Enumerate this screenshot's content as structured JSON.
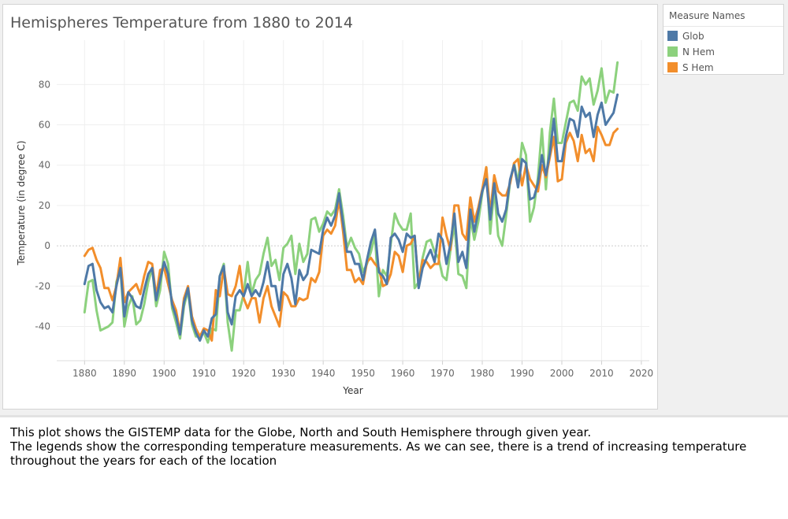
{
  "description": {
    "line1": "This plot shows the GISTEMP data for the Globe, North and South Hemisphere through given year.",
    "line2": "The legends show the corresponding temperature measurements. As we can see, there is a trend of increasing temperature throughout the years for each of the location"
  },
  "legend": {
    "title": "Measure Names",
    "items": [
      {
        "label": "Glob",
        "color": "#4e79a7"
      },
      {
        "label": "N Hem",
        "color": "#8cd17d"
      },
      {
        "label": "S Hem",
        "color": "#f28e2b"
      }
    ]
  },
  "chart_data": {
    "type": "line",
    "title": "Hemispheres Temperature from 1880 to 2014",
    "xlabel": "Year",
    "ylabel": "Temperature (in degree C)",
    "xlim": [
      1873,
      2022
    ],
    "ylim": [
      -57,
      102
    ],
    "x_ticks": [
      1880,
      1890,
      1900,
      1910,
      1920,
      1930,
      1940,
      1950,
      1960,
      1970,
      1980,
      1990,
      2000,
      2010,
      2020
    ],
    "y_ticks": [
      -40,
      -20,
      0,
      20,
      40,
      60,
      80
    ],
    "grid": true,
    "legend_position": "right",
    "x": [
      1880,
      1881,
      1882,
      1883,
      1884,
      1885,
      1886,
      1887,
      1888,
      1889,
      1890,
      1891,
      1892,
      1893,
      1894,
      1895,
      1896,
      1897,
      1898,
      1899,
      1900,
      1901,
      1902,
      1903,
      1904,
      1905,
      1906,
      1907,
      1908,
      1909,
      1910,
      1911,
      1912,
      1913,
      1914,
      1915,
      1916,
      1917,
      1918,
      1919,
      1920,
      1921,
      1922,
      1923,
      1924,
      1925,
      1926,
      1927,
      1928,
      1929,
      1930,
      1931,
      1932,
      1933,
      1934,
      1935,
      1936,
      1937,
      1938,
      1939,
      1940,
      1941,
      1942,
      1943,
      1944,
      1945,
      1946,
      1947,
      1948,
      1949,
      1950,
      1951,
      1952,
      1953,
      1954,
      1955,
      1956,
      1957,
      1958,
      1959,
      1960,
      1961,
      1962,
      1963,
      1964,
      1965,
      1966,
      1967,
      1968,
      1969,
      1970,
      1971,
      1972,
      1973,
      1974,
      1975,
      1976,
      1977,
      1978,
      1979,
      1980,
      1981,
      1982,
      1983,
      1984,
      1985,
      1986,
      1987,
      1988,
      1989,
      1990,
      1991,
      1992,
      1993,
      1994,
      1995,
      1996,
      1997,
      1998,
      1999,
      2000,
      2001,
      2002,
      2003,
      2004,
      2005,
      2006,
      2007,
      2008,
      2009,
      2010,
      2011,
      2012,
      2013,
      2014
    ],
    "series": [
      {
        "name": "Glob",
        "color": "#4e79a7",
        "values": [
          -19,
          -10,
          -9,
          -22,
          -28,
          -31,
          -30,
          -33,
          -20,
          -11,
          -35,
          -23,
          -26,
          -30,
          -31,
          -22,
          -14,
          -11,
          -27,
          -17,
          -8,
          -14,
          -29,
          -35,
          -44,
          -28,
          -21,
          -37,
          -43,
          -47,
          -42,
          -45,
          -36,
          -34,
          -15,
          -10,
          -33,
          -39,
          -25,
          -22,
          -25,
          -19,
          -25,
          -22,
          -25,
          -18,
          -8,
          -20,
          -20,
          -32,
          -14,
          -9,
          -16,
          -29,
          -12,
          -17,
          -14,
          -2,
          -3,
          -4,
          8,
          14,
          10,
          15,
          26,
          11,
          -3,
          -3,
          -9,
          -9,
          -17,
          -7,
          2,
          8,
          -13,
          -15,
          -19,
          4,
          6,
          3,
          -3,
          6,
          4,
          5,
          -21,
          -11,
          -6,
          -2,
          -8,
          6,
          3,
          -9,
          1,
          16,
          -8,
          -3,
          -11,
          18,
          7,
          17,
          27,
          33,
          13,
          31,
          16,
          12,
          18,
          33,
          40,
          29,
          43,
          41,
          23,
          24,
          31,
          45,
          35,
          46,
          63,
          42,
          42,
          54,
          63,
          62,
          54,
          69,
          64,
          66,
          54,
          65,
          71,
          60,
          63,
          66,
          75
        ]
      },
      {
        "name": "N Hem",
        "color": "#8cd17d",
        "values": [
          -33,
          -18,
          -17,
          -32,
          -42,
          -41,
          -40,
          -38,
          -18,
          -11,
          -40,
          -30,
          -25,
          -39,
          -37,
          -29,
          -18,
          -11,
          -30,
          -22,
          -3,
          -9,
          -31,
          -38,
          -46,
          -30,
          -22,
          -39,
          -45,
          -45,
          -43,
          -48,
          -41,
          -42,
          -15,
          -9,
          -38,
          -52,
          -32,
          -32,
          -24,
          -8,
          -24,
          -17,
          -14,
          -4,
          4,
          -10,
          -7,
          -17,
          -1,
          1,
          5,
          -14,
          1,
          -8,
          -4,
          13,
          14,
          7,
          11,
          17,
          15,
          18,
          28,
          15,
          -1,
          4,
          -1,
          -4,
          -13,
          -9,
          -3,
          5,
          -25,
          -12,
          -15,
          1,
          16,
          11,
          8,
          8,
          16,
          -21,
          -18,
          -6,
          2,
          3,
          -3,
          -6,
          -15,
          -17,
          -2,
          11,
          -14,
          -15,
          -21,
          14,
          3,
          12,
          26,
          39,
          6,
          28,
          5,
          0,
          15,
          32,
          41,
          31,
          51,
          45,
          12,
          19,
          34,
          58,
          28,
          56,
          73,
          51,
          51,
          61,
          71,
          72,
          67,
          84,
          80,
          83,
          70,
          77,
          88,
          71,
          77,
          76,
          91
        ]
      },
      {
        "name": "S Hem",
        "color": "#f28e2b",
        "values": [
          -5,
          -2,
          -1,
          -7,
          -11,
          -21,
          -21,
          -27,
          -20,
          -6,
          -28,
          -23,
          -21,
          -19,
          -24,
          -15,
          -8,
          -9,
          -25,
          -12,
          -11,
          -19,
          -27,
          -32,
          -43,
          -26,
          -20,
          -35,
          -41,
          -45,
          -41,
          -42,
          -47,
          -22,
          -25,
          -11,
          -24,
          -25,
          -20,
          -10,
          -26,
          -31,
          -26,
          -26,
          -38,
          -26,
          -20,
          -30,
          -35,
          -40,
          -23,
          -25,
          -30,
          -30,
          -26,
          -27,
          -26,
          -16,
          -18,
          -13,
          5,
          8,
          6,
          10,
          23,
          7,
          -12,
          -12,
          -18,
          -16,
          -19,
          -8,
          -6,
          -9,
          -11,
          -20,
          -19,
          -14,
          -3,
          -5,
          -13,
          0,
          1,
          5,
          -20,
          -7,
          -8,
          -11,
          -9,
          -9,
          14,
          5,
          -2,
          20,
          20,
          6,
          3,
          24,
          12,
          19,
          28,
          39,
          16,
          35,
          27,
          25,
          25,
          31,
          41,
          43,
          30,
          40,
          33,
          30,
          27,
          40,
          34,
          44,
          54,
          32,
          33,
          51,
          56,
          52,
          42,
          55,
          46,
          48,
          42,
          59,
          55,
          50,
          50,
          56,
          58
        ]
      }
    ]
  }
}
